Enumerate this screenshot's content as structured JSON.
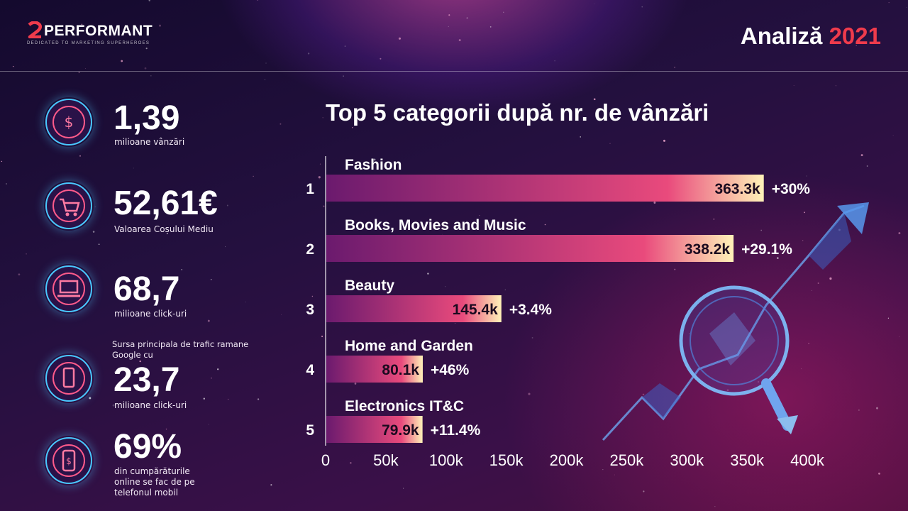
{
  "header": {
    "logo_text": "PERFORMANT",
    "logo_tagline": "DEDICATED TO MARKETING SUPERHEROES",
    "title_text": "Analiză",
    "title_year": "2021"
  },
  "stats": [
    {
      "value": "1,39",
      "label": "milioane vânzări",
      "icon": "dollar-cursor-icon"
    },
    {
      "value": "52,61€",
      "label": "Valoarea Coșului Mediu",
      "icon": "shopping-cart-icon"
    },
    {
      "value": "68,7",
      "label": "milioane click-uri",
      "icon": "laptop-icon"
    },
    {
      "pre": "Sursa principala de trafic ramane Google cu",
      "value": "23,7",
      "label": "milioane click-uri",
      "icon": "smartphone-hand-icon"
    },
    {
      "value": "69%",
      "label": "din cumpărăturile online se fac de pe telefonul mobil",
      "icon": "mobile-payment-icon"
    }
  ],
  "colors": {
    "accent": "#ef3b4c",
    "bar_start": "#6b1a6e",
    "bar_mid": "#e94a7c",
    "bar_end": "#fff2b8"
  },
  "chart_data": {
    "type": "bar",
    "orientation": "horizontal",
    "title": "Top 5 categorii după nr. de vânzări",
    "ranks": [
      "1",
      "2",
      "3",
      "4",
      "5"
    ],
    "categories": [
      "Fashion",
      "Books, Movies and Music",
      "Beauty",
      "Home and Garden",
      "Electronics IT&C"
    ],
    "values": [
      363.3,
      338.2,
      145.4,
      80.1,
      79.9
    ],
    "value_labels": [
      "363.3k",
      "338.2k",
      "145.4k",
      "80.1k",
      "79.9k"
    ],
    "growth_labels": [
      "+30%",
      "+29.1%",
      "+3.4%",
      "+46%",
      "+11.4%"
    ],
    "x_ticks": [
      "0",
      "50k",
      "100k",
      "150k",
      "200k",
      "250k",
      "300k",
      "350k",
      "400k"
    ],
    "xlim": [
      0,
      400
    ],
    "grid": false,
    "legend": "none"
  }
}
